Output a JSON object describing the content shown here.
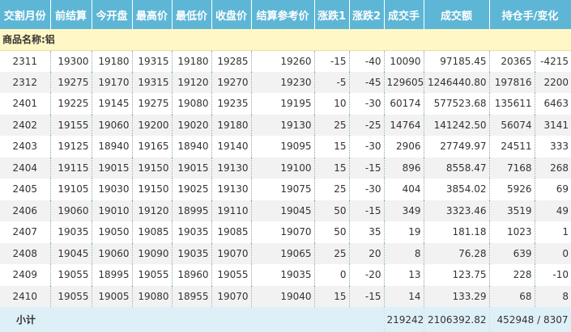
{
  "header": [
    "交割月份",
    "前结算",
    "今开盘",
    "最高价",
    "最低价",
    "收盘价",
    "结算参考价",
    "涨跌1",
    "涨跌2",
    "成交手",
    "成交额",
    "持仓手/变化"
  ],
  "section": "商品名称:铝",
  "rows": [
    [
      "2311",
      "19300",
      "19180",
      "19315",
      "19180",
      "19285",
      "19260",
      "-15",
      "-40",
      "10090",
      "97185.45",
      "20365",
      "-4215"
    ],
    [
      "2312",
      "19275",
      "19170",
      "19315",
      "19120",
      "19270",
      "19230",
      "-5",
      "-45",
      "129605",
      "1246440.80",
      "197816",
      "2200"
    ],
    [
      "2401",
      "19225",
      "19145",
      "19275",
      "19080",
      "19235",
      "19195",
      "10",
      "-30",
      "60174",
      "577523.68",
      "135611",
      "6463"
    ],
    [
      "2402",
      "19155",
      "19060",
      "19200",
      "19020",
      "19180",
      "19130",
      "25",
      "-25",
      "14764",
      "141242.50",
      "56074",
      "3141"
    ],
    [
      "2403",
      "19125",
      "18940",
      "19165",
      "18940",
      "19140",
      "19095",
      "15",
      "-30",
      "2906",
      "27749.97",
      "24511",
      "333"
    ],
    [
      "2404",
      "19115",
      "19015",
      "19150",
      "19015",
      "19130",
      "19100",
      "15",
      "-15",
      "896",
      "8558.47",
      "7168",
      "268"
    ],
    [
      "2405",
      "19105",
      "19030",
      "19150",
      "19025",
      "19130",
      "19075",
      "25",
      "-30",
      "404",
      "3854.02",
      "5926",
      "69"
    ],
    [
      "2406",
      "19060",
      "19010",
      "19120",
      "18995",
      "19110",
      "19045",
      "50",
      "-15",
      "349",
      "3323.46",
      "3519",
      "49"
    ],
    [
      "2407",
      "19035",
      "19050",
      "19085",
      "19035",
      "19085",
      "19070",
      "50",
      "35",
      "19",
      "181.18",
      "1023",
      "1"
    ],
    [
      "2408",
      "19045",
      "19060",
      "19090",
      "19035",
      "19070",
      "19065",
      "25",
      "20",
      "8",
      "76.28",
      "639",
      "0"
    ],
    [
      "2409",
      "19055",
      "18995",
      "19055",
      "18960",
      "19055",
      "19035",
      "0",
      "-20",
      "13",
      "123.75",
      "228",
      "-10"
    ],
    [
      "2410",
      "19055",
      "19005",
      "19080",
      "18955",
      "19070",
      "19040",
      "15",
      "-15",
      "14",
      "133.29",
      "68",
      "8"
    ]
  ],
  "subtotal": {
    "label": "小计",
    "volume": "219242",
    "turnover": "2106392.82",
    "open_interest": "452948 / 8307"
  }
}
